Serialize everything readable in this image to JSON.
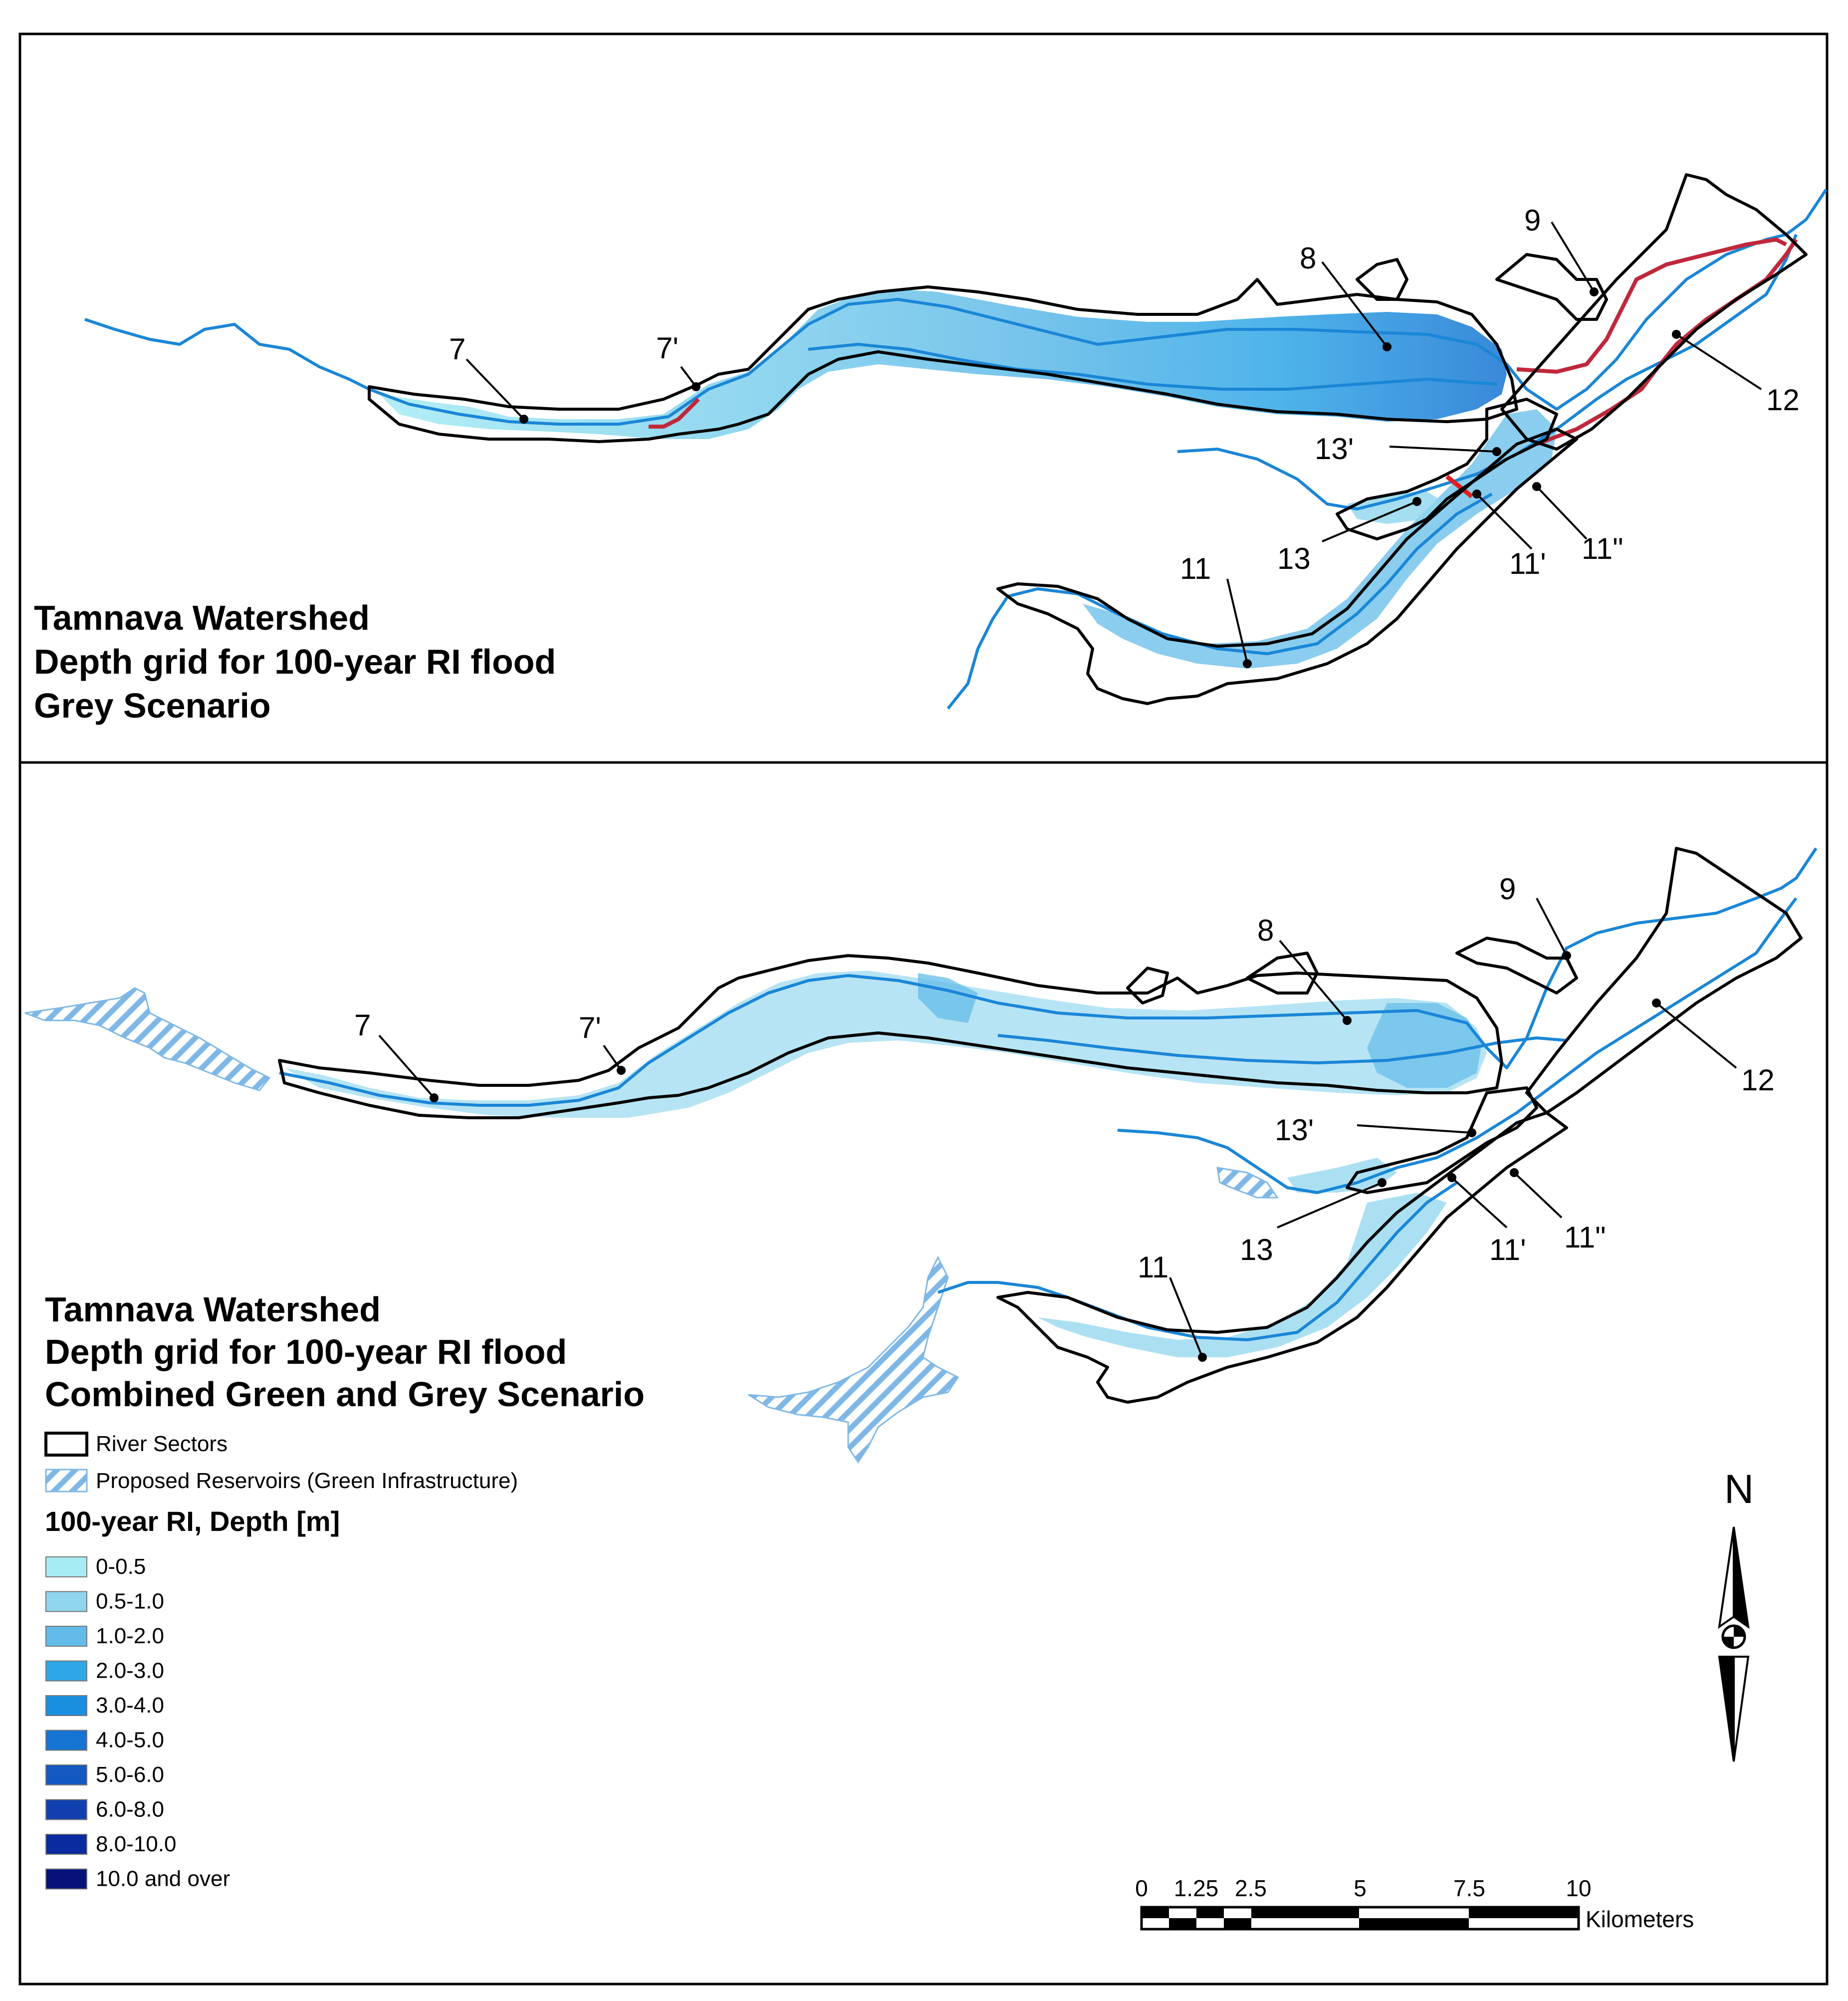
{
  "panel_top": {
    "title_lines": [
      "Tamnava Watershed",
      "Depth grid for 100-year RI flood",
      "Grey Scenario"
    ],
    "sector_labels": [
      "7",
      "7'",
      "8",
      "9",
      "12",
      "13'",
      "13",
      "11'",
      "11\"",
      "11"
    ]
  },
  "panel_bottom": {
    "title_lines": [
      "Tamnava Watershed",
      "Depth grid for 100-year RI flood",
      "Combined Green and Grey Scenario"
    ],
    "sector_labels": [
      "7",
      "7'",
      "8",
      "9",
      "12",
      "13'",
      "13",
      "11'",
      "11\"",
      "11"
    ]
  },
  "legend": {
    "river_sectors": "River Sectors",
    "reservoirs": "Proposed Reservoirs (Green Infrastructure)",
    "depth_title": "100-year RI, Depth [m]",
    "classes": [
      {
        "label": "0-0.5",
        "color": "#a6ecf4"
      },
      {
        "label": "0.5-1.0",
        "color": "#8fd6ee"
      },
      {
        "label": "1.0-2.0",
        "color": "#63bce8"
      },
      {
        "label": "2.0-3.0",
        "color": "#2fa6e6"
      },
      {
        "label": "3.0-4.0",
        "color": "#1a8fe0"
      },
      {
        "label": "4.0-5.0",
        "color": "#1674d2"
      },
      {
        "label": "5.0-6.0",
        "color": "#1458c2"
      },
      {
        "label": "6.0-8.0",
        "color": "#1040b0"
      },
      {
        "label": "8.0-10.0",
        "color": "#0a2aa0"
      },
      {
        "label": "10.0 and over",
        "color": "#06127a"
      }
    ]
  },
  "north_arrow": {
    "letter": "N"
  },
  "scale_bar": {
    "ticks": [
      "0",
      "1.25",
      "2.5",
      "5",
      "7.5",
      "10"
    ],
    "unit": "Kilometers"
  },
  "colors": {
    "river": "#1a86d6",
    "grey_infrastructure": "#c0283c",
    "reservoir_hatch": "#7fb8e6"
  }
}
